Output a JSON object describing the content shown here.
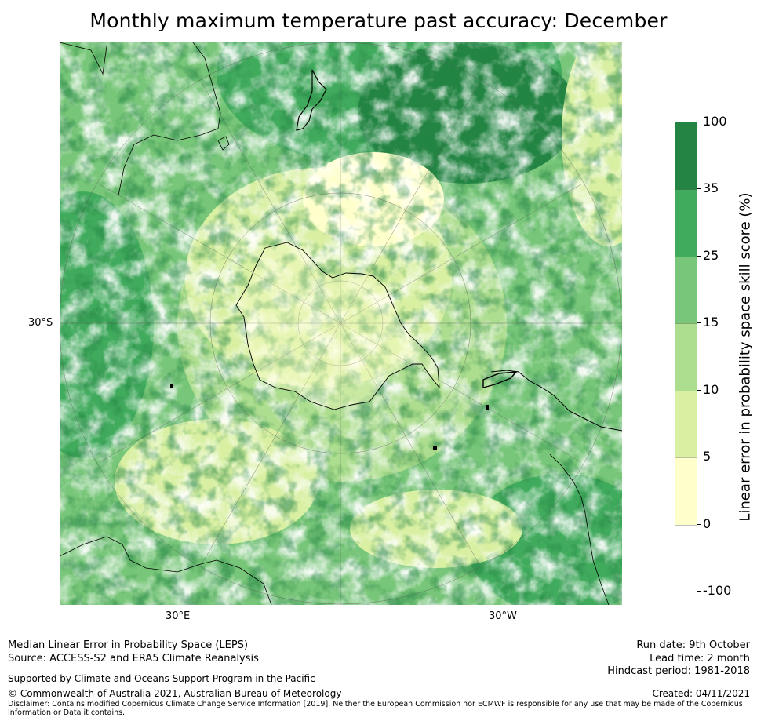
{
  "title": "Monthly maximum temperature past accuracy: December",
  "map": {
    "projection": "South polar stereographic",
    "lat_labels": [
      "30°S"
    ],
    "lon_labels": [
      "30°E",
      "30°W"
    ]
  },
  "colorbar": {
    "title": "Linear error in probability space skill score (%)",
    "ticks": [
      "100",
      "35",
      "25",
      "15",
      "10",
      "5",
      "0",
      "-100"
    ],
    "bins": [
      {
        "from": "-100",
        "to": "0",
        "color": "#ffffff"
      },
      {
        "from": "0",
        "to": "5",
        "color": "#ffffcc"
      },
      {
        "from": "5",
        "to": "10",
        "color": "#d9f0a3"
      },
      {
        "from": "10",
        "to": "15",
        "color": "#addd8e"
      },
      {
        "from": "15",
        "to": "25",
        "color": "#78c679"
      },
      {
        "from": "25",
        "to": "35",
        "color": "#41ab5d"
      },
      {
        "from": "35",
        "to": "100",
        "color": "#238443"
      }
    ]
  },
  "footer": {
    "left_line1": "Median Linear Error in Probability Space (LEPS)",
    "left_line2": "Source: ACCESS-S2 and ERA5 Climate Reanalysis",
    "supported": "Supported by Climate and Oceans Support Program in the Pacific",
    "copyright": "© Commonwealth of Australia 2021, Australian Bureau of Meteorology",
    "disclaimer": "Disclaimer: Contains modified Copernicus Climate Change Service Information [2019]. Neither the European Commission nor ECMWF is responsible for any use that may be made of the Copernicus Information or Data it contains.",
    "run_date": "Run date: 9th October",
    "lead_time": "Lead time: 2 month",
    "hindcast": "Hindcast period: 1981-2018",
    "created": "Created: 04/11/2021"
  }
}
